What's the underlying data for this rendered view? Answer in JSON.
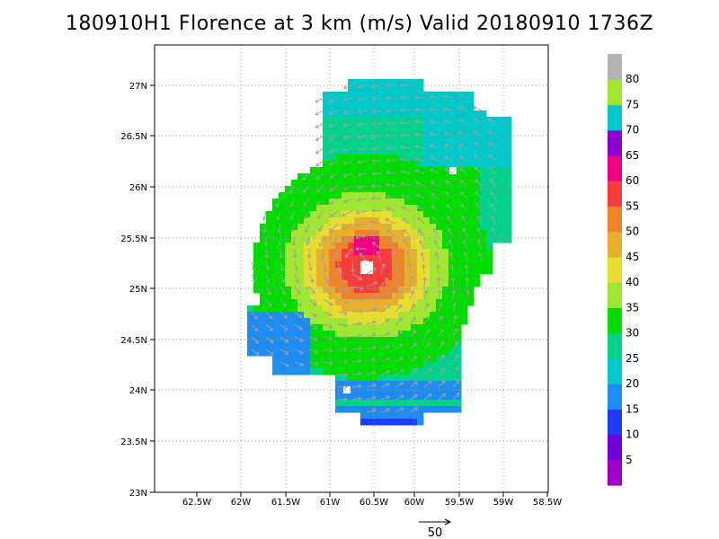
{
  "title": "180910H1 Florence at 3 km (m/s) Valid 20180910 1736Z",
  "lon_labels": [
    "62.5W",
    "62W",
    "61.5W",
    "61W",
    "60.5W",
    "60W",
    "59.5W",
    "59W",
    "58.5W"
  ],
  "lat_labels": [
    "23N",
    "23.5N",
    "24N",
    "24.5N",
    "25N",
    "25.5N",
    "26N",
    "26.5N",
    "27N"
  ],
  "colorbar": {
    "levels": [
      "5",
      "10",
      "15",
      "20",
      "25",
      "30",
      "35",
      "40",
      "45",
      "50",
      "55",
      "60",
      "65",
      "70",
      "75",
      "80"
    ],
    "colors": [
      "#a000c8",
      "#6e00dc",
      "#1e3cff",
      "#1e8cf0",
      "#00c8c8",
      "#00d28c",
      "#00dc00",
      "#a0e632",
      "#e6dc32",
      "#e6af2d",
      "#f08228",
      "#fa3c3c",
      "#f00082",
      "#8c00d2",
      "#00c8c8",
      "#a0e632",
      "#b4b4b4"
    ]
  },
  "vector_reference": {
    "label": "50"
  }
}
